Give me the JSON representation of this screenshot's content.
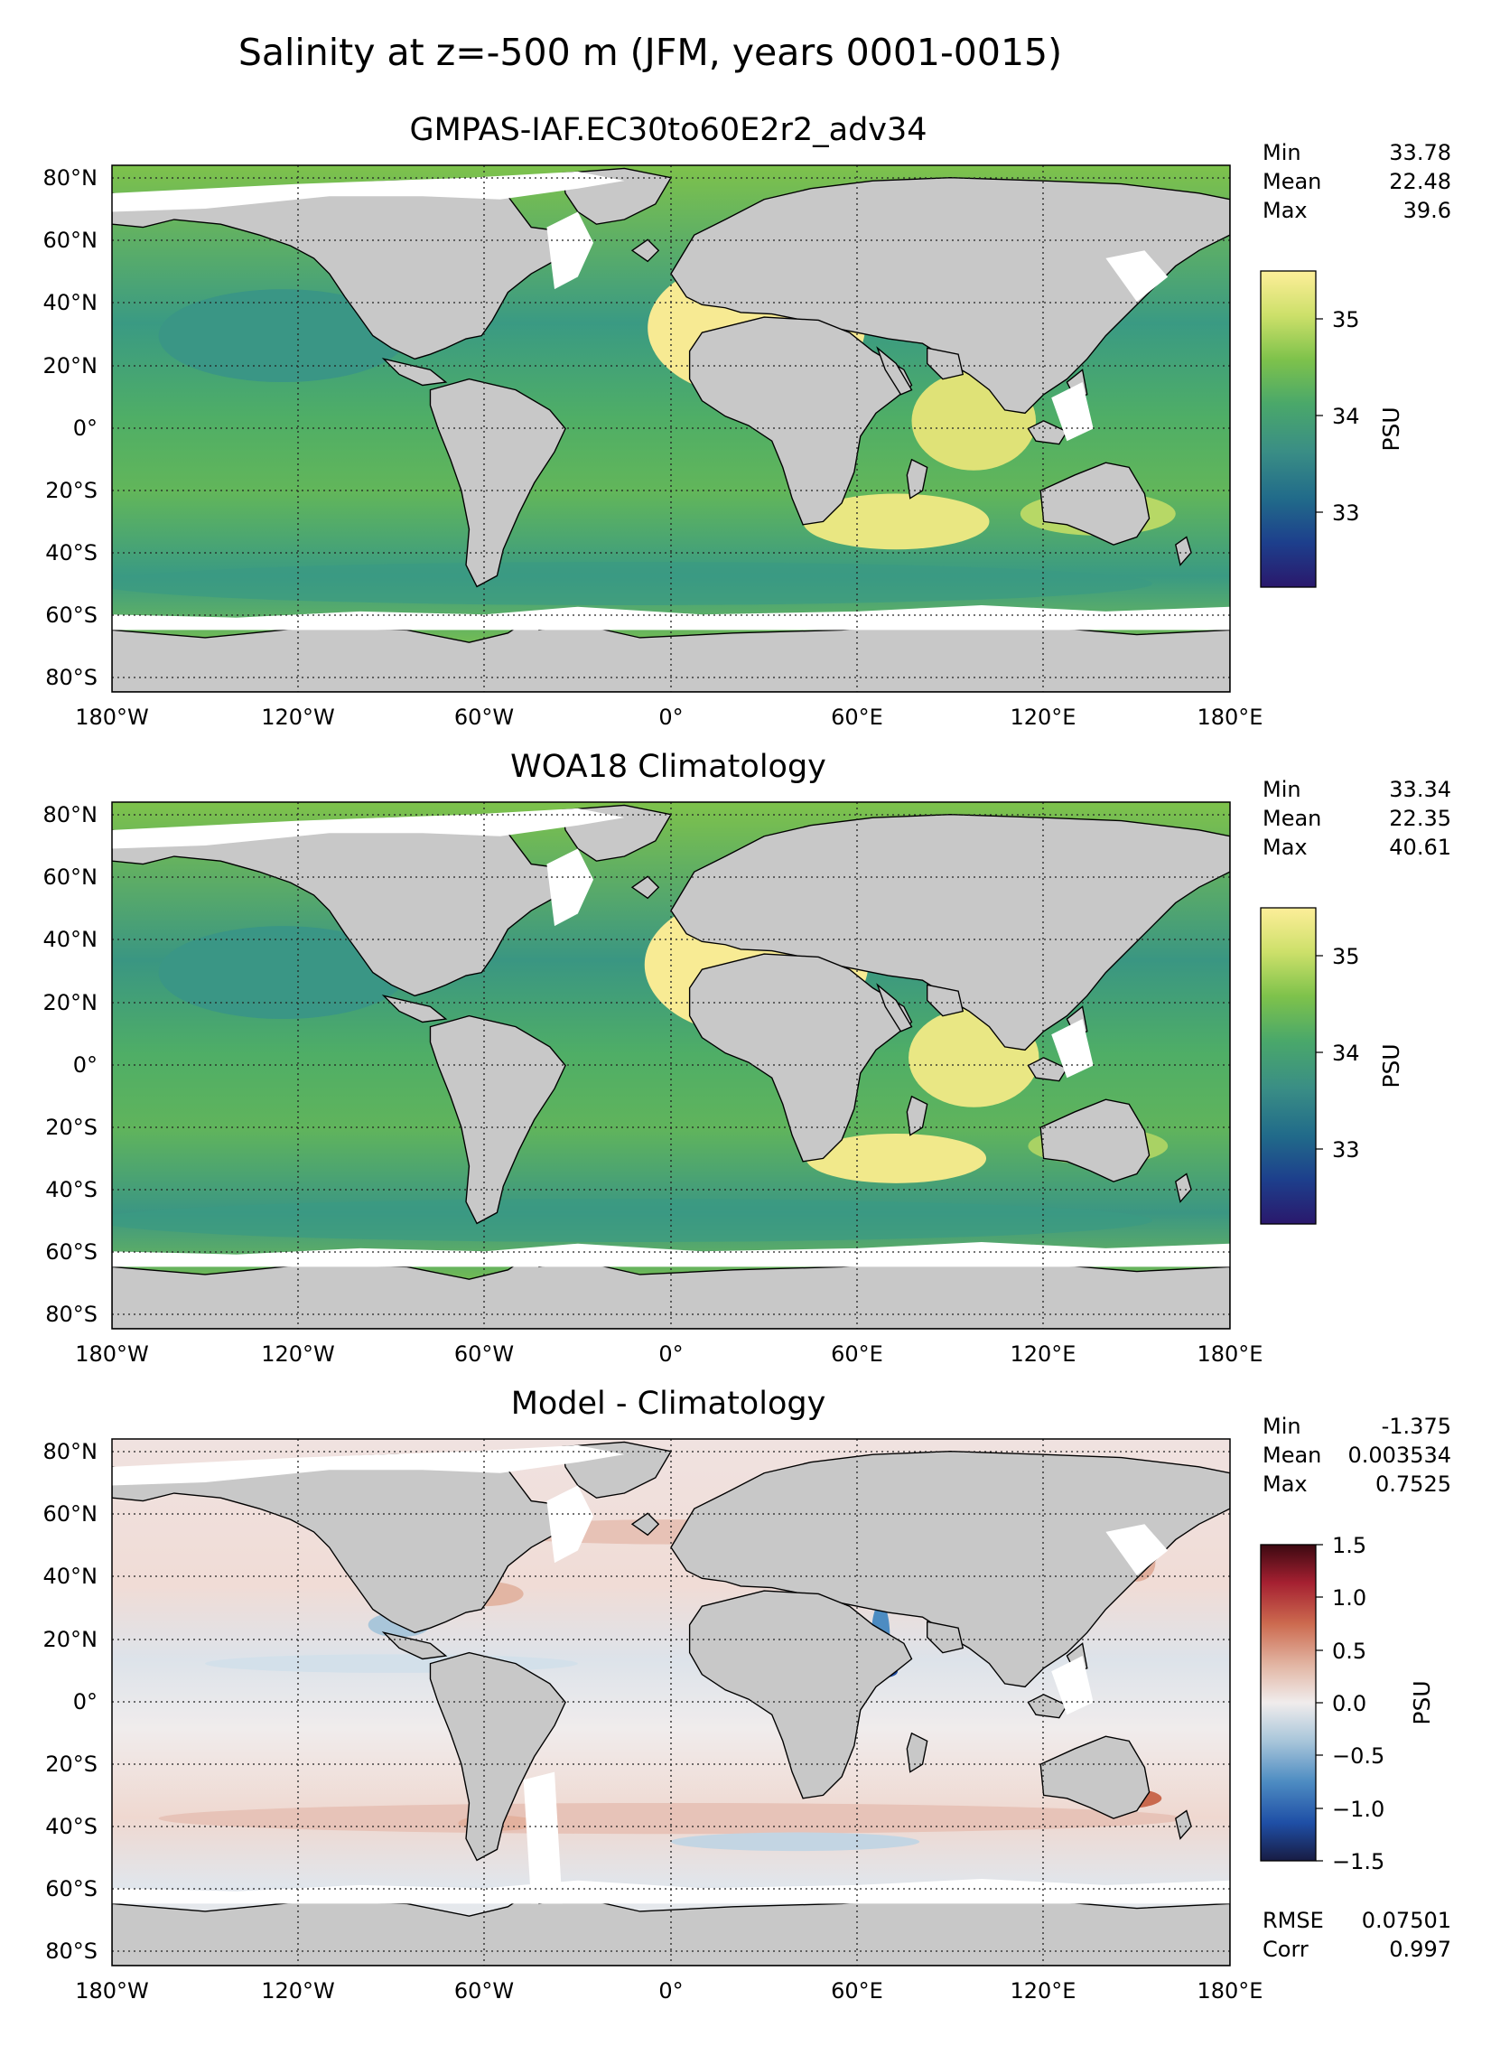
{
  "title": "Salinity at z=-500 m (JFM, years 0001-0015)",
  "colors": {
    "land": "#c8c8c8",
    "seaice_gap": "#ffffff",
    "haline_cmap": [
      "#2a186c",
      "#1d3f8c",
      "#216b8a",
      "#3a8e85",
      "#4aa86a",
      "#7ec24b",
      "#cde06a",
      "#fdee99"
    ],
    "balance_cmap": [
      "#181c43",
      "#1f4fa6",
      "#4d8cc2",
      "#a9c6da",
      "#f0ecec",
      "#e2b5a3",
      "#cc6a4f",
      "#a52031",
      "#3c0911"
    ]
  },
  "axes": {
    "lon_ticks": [
      "180°W",
      "120°W",
      "60°W",
      "0°",
      "60°E",
      "120°E",
      "180°E"
    ],
    "lat_ticks": [
      "80°N",
      "60°N",
      "40°N",
      "20°N",
      "0°",
      "20°S",
      "40°S",
      "60°S",
      "80°S"
    ]
  },
  "panels": [
    {
      "title": "GMPAS-IAF.EC30to60E2r2_adv34",
      "stats": [
        {
          "label": "Min",
          "value": "33.78"
        },
        {
          "label": "Mean",
          "value": "22.48"
        },
        {
          "label": "Max",
          "value": "39.6"
        }
      ],
      "colorbar": {
        "ticks": [
          "33",
          "34",
          "35"
        ],
        "label": "PSU"
      }
    },
    {
      "title": "WOA18 Climatology",
      "stats": [
        {
          "label": "Min",
          "value": "33.34"
        },
        {
          "label": "Mean",
          "value": "22.35"
        },
        {
          "label": "Max",
          "value": "40.61"
        }
      ],
      "colorbar": {
        "ticks": [
          "33",
          "34",
          "35"
        ],
        "label": "PSU"
      }
    },
    {
      "title": "Model - Climatology",
      "stats": [
        {
          "label": "Min",
          "value": "-1.375"
        },
        {
          "label": "Mean",
          "value": "0.003534"
        },
        {
          "label": "Max",
          "value": "0.7525"
        }
      ],
      "colorbar": {
        "ticks": [
          "1.5",
          "1.0",
          "0.5",
          "0.0",
          "−0.5",
          "−1.0",
          "−1.5"
        ],
        "label": "PSU"
      },
      "extra_stats": [
        {
          "label": "RMSE",
          "value": "0.07501"
        },
        {
          "label": "Corr",
          "value": "0.997"
        }
      ]
    }
  ],
  "chart_data": [
    {
      "type": "heatmap",
      "title": "GMPAS-IAF.EC30to60E2r2_adv34",
      "xlabel": "",
      "ylabel": "",
      "xlim": [
        -180,
        180
      ],
      "ylim": [
        -85,
        85
      ],
      "x_ticks": [
        "180°W",
        "120°W",
        "60°W",
        "0°",
        "60°E",
        "120°E",
        "180°E"
      ],
      "y_ticks": [
        "80°N",
        "60°N",
        "40°N",
        "20°N",
        "0°",
        "20°S",
        "40°S",
        "60°S",
        "80°S"
      ],
      "colorbar_range": [
        32.2,
        35.5
      ],
      "colorbar_label": "PSU",
      "grid": true
    },
    {
      "type": "heatmap",
      "title": "WOA18 Climatology",
      "xlabel": "",
      "ylabel": "",
      "xlim": [
        -180,
        180
      ],
      "ylim": [
        -85,
        85
      ],
      "x_ticks": [
        "180°W",
        "120°W",
        "60°W",
        "0°",
        "60°E",
        "120°E",
        "180°E"
      ],
      "y_ticks": [
        "80°N",
        "60°N",
        "40°N",
        "20°N",
        "0°",
        "20°S",
        "40°S",
        "60°S",
        "80°S"
      ],
      "colorbar_range": [
        32.2,
        35.5
      ],
      "colorbar_label": "PSU",
      "grid": true
    },
    {
      "type": "heatmap",
      "title": "Model - Climatology",
      "xlabel": "",
      "ylabel": "",
      "xlim": [
        -180,
        180
      ],
      "ylim": [
        -85,
        85
      ],
      "x_ticks": [
        "180°W",
        "120°W",
        "60°W",
        "0°",
        "60°E",
        "120°E",
        "180°E"
      ],
      "y_ticks": [
        "80°N",
        "60°N",
        "40°N",
        "20°N",
        "0°",
        "20°S",
        "40°S",
        "60°S",
        "80°S"
      ],
      "colorbar_range": [
        -1.5,
        1.5
      ],
      "colorbar_label": "PSU",
      "grid": true
    }
  ]
}
